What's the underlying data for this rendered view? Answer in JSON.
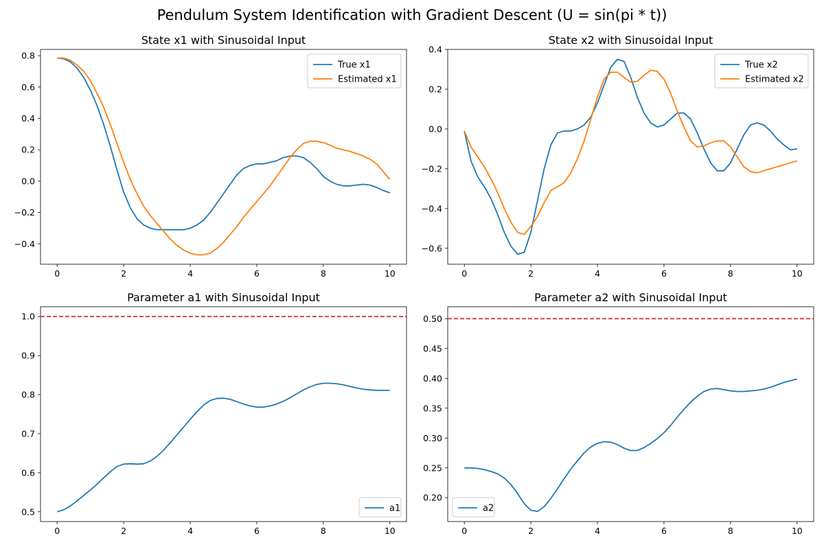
{
  "figure": {
    "title": "Pendulum System Identification with Gradient Descent (U = sin(pi * t))"
  },
  "colors": {
    "blue": "#1f77b4",
    "orange": "#ff7f0e",
    "red": "#d62728"
  },
  "chart_data": [
    {
      "id": "x1",
      "type": "line",
      "title": "State x1 with Sinusoidal Input",
      "xlim": [
        -0.5,
        10.5
      ],
      "ylim": [
        -0.53,
        0.84
      ],
      "xticks": [
        0,
        2,
        4,
        6,
        8,
        10
      ],
      "yticks": [
        -0.4,
        -0.2,
        0.0,
        0.2,
        0.4,
        0.6,
        0.8
      ],
      "yticklabels": [
        "−0.4",
        "−0.2",
        "0.0",
        "0.2",
        "0.4",
        "0.6",
        "0.8"
      ],
      "legend": "upper right",
      "series": [
        {
          "name": "True x1",
          "color": "#1f77b4",
          "x": [
            0,
            0.2,
            0.4,
            0.6,
            0.8,
            1.0,
            1.2,
            1.4,
            1.6,
            1.8,
            2.0,
            2.2,
            2.4,
            2.6,
            2.8,
            3.0,
            3.2,
            3.4,
            3.6,
            3.8,
            4.0,
            4.2,
            4.4,
            4.6,
            4.8,
            5.0,
            5.2,
            5.4,
            5.6,
            5.8,
            6.0,
            6.2,
            6.4,
            6.6,
            6.8,
            7.0,
            7.2,
            7.4,
            7.6,
            7.8,
            8.0,
            8.2,
            8.4,
            8.6,
            8.8,
            9.0,
            9.2,
            9.4,
            9.6,
            9.8,
            10.0
          ],
          "y": [
            0.785,
            0.78,
            0.76,
            0.72,
            0.66,
            0.58,
            0.48,
            0.36,
            0.22,
            0.07,
            -0.07,
            -0.17,
            -0.24,
            -0.28,
            -0.3,
            -0.31,
            -0.31,
            -0.31,
            -0.31,
            -0.31,
            -0.3,
            -0.28,
            -0.25,
            -0.2,
            -0.14,
            -0.08,
            -0.02,
            0.04,
            0.08,
            0.1,
            0.11,
            0.11,
            0.12,
            0.13,
            0.15,
            0.16,
            0.16,
            0.15,
            0.12,
            0.08,
            0.03,
            0.0,
            -0.02,
            -0.03,
            -0.03,
            -0.025,
            -0.02,
            -0.025,
            -0.04,
            -0.06,
            -0.075
          ]
        },
        {
          "name": "Estimated x1",
          "color": "#ff7f0e",
          "x": [
            0,
            0.2,
            0.4,
            0.6,
            0.8,
            1.0,
            1.2,
            1.4,
            1.6,
            1.8,
            2.0,
            2.2,
            2.4,
            2.6,
            2.8,
            3.0,
            3.2,
            3.4,
            3.6,
            3.8,
            4.0,
            4.2,
            4.4,
            4.6,
            4.8,
            5.0,
            5.2,
            5.4,
            5.6,
            5.8,
            6.0,
            6.2,
            6.4,
            6.6,
            6.8,
            7.0,
            7.2,
            7.4,
            7.6,
            7.8,
            8.0,
            8.2,
            8.4,
            8.6,
            8.8,
            9.0,
            9.2,
            9.4,
            9.6,
            9.8,
            10.0
          ],
          "y": [
            0.785,
            0.785,
            0.77,
            0.74,
            0.7,
            0.64,
            0.56,
            0.47,
            0.36,
            0.24,
            0.12,
            0.01,
            -0.08,
            -0.16,
            -0.22,
            -0.27,
            -0.32,
            -0.37,
            -0.41,
            -0.44,
            -0.46,
            -0.47,
            -0.47,
            -0.46,
            -0.43,
            -0.39,
            -0.34,
            -0.29,
            -0.23,
            -0.18,
            -0.13,
            -0.08,
            -0.03,
            0.03,
            0.09,
            0.15,
            0.2,
            0.24,
            0.255,
            0.255,
            0.245,
            0.23,
            0.21,
            0.2,
            0.19,
            0.175,
            0.16,
            0.14,
            0.11,
            0.06,
            0.01
          ]
        }
      ]
    },
    {
      "id": "x2",
      "type": "line",
      "title": "State x2 with Sinusoidal Input",
      "xlim": [
        -0.5,
        10.5
      ],
      "ylim": [
        -0.68,
        0.4
      ],
      "xticks": [
        0,
        2,
        4,
        6,
        8,
        10
      ],
      "yticks": [
        -0.6,
        -0.4,
        -0.2,
        0.0,
        0.2,
        0.4
      ],
      "yticklabels": [
        "−0.6",
        "−0.4",
        "−0.2",
        "0.0",
        "0.2",
        "0.4"
      ],
      "legend": "upper right",
      "series": [
        {
          "name": "True x2",
          "color": "#1f77b4",
          "x": [
            0,
            0.2,
            0.4,
            0.6,
            0.8,
            1.0,
            1.2,
            1.4,
            1.6,
            1.8,
            2.0,
            2.2,
            2.4,
            2.6,
            2.8,
            3.0,
            3.2,
            3.4,
            3.6,
            3.8,
            4.0,
            4.2,
            4.4,
            4.6,
            4.8,
            5.0,
            5.2,
            5.4,
            5.6,
            5.8,
            6.0,
            6.2,
            6.4,
            6.6,
            6.8,
            7.0,
            7.2,
            7.4,
            7.6,
            7.8,
            8.0,
            8.2,
            8.4,
            8.6,
            8.8,
            9.0,
            9.2,
            9.4,
            9.6,
            9.8,
            10.0
          ],
          "y": [
            -0.01,
            -0.16,
            -0.24,
            -0.29,
            -0.35,
            -0.43,
            -0.52,
            -0.59,
            -0.63,
            -0.62,
            -0.52,
            -0.36,
            -0.2,
            -0.08,
            -0.02,
            -0.01,
            -0.01,
            0.0,
            0.02,
            0.06,
            0.13,
            0.22,
            0.31,
            0.35,
            0.34,
            0.26,
            0.16,
            0.08,
            0.03,
            0.01,
            0.02,
            0.05,
            0.08,
            0.08,
            0.05,
            -0.02,
            -0.1,
            -0.17,
            -0.21,
            -0.21,
            -0.17,
            -0.1,
            -0.03,
            0.02,
            0.03,
            0.02,
            -0.01,
            -0.05,
            -0.08,
            -0.105,
            -0.1
          ]
        },
        {
          "name": "Estimated x2",
          "color": "#ff7f0e",
          "x": [
            0,
            0.2,
            0.4,
            0.6,
            0.8,
            1.0,
            1.2,
            1.4,
            1.6,
            1.8,
            2.0,
            2.2,
            2.4,
            2.6,
            2.8,
            3.0,
            3.2,
            3.4,
            3.6,
            3.8,
            4.0,
            4.2,
            4.4,
            4.6,
            4.8,
            5.0,
            5.2,
            5.4,
            5.6,
            5.8,
            6.0,
            6.2,
            6.4,
            6.6,
            6.8,
            7.0,
            7.2,
            7.4,
            7.6,
            7.8,
            8.0,
            8.2,
            8.4,
            8.6,
            8.8,
            9.0,
            9.2,
            9.4,
            9.6,
            9.8,
            10.0
          ],
          "y": [
            -0.01,
            -0.09,
            -0.14,
            -0.19,
            -0.25,
            -0.32,
            -0.4,
            -0.47,
            -0.52,
            -0.53,
            -0.49,
            -0.44,
            -0.37,
            -0.31,
            -0.29,
            -0.27,
            -0.22,
            -0.15,
            -0.06,
            0.05,
            0.16,
            0.25,
            0.285,
            0.285,
            0.26,
            0.235,
            0.24,
            0.27,
            0.295,
            0.29,
            0.25,
            0.18,
            0.09,
            0.01,
            -0.06,
            -0.09,
            -0.085,
            -0.07,
            -0.06,
            -0.06,
            -0.09,
            -0.14,
            -0.19,
            -0.215,
            -0.22,
            -0.21,
            -0.2,
            -0.19,
            -0.18,
            -0.17,
            -0.16
          ]
        }
      ]
    },
    {
      "id": "a1",
      "type": "line",
      "title": "Parameter a1 with Sinusoidal Input",
      "xlim": [
        -0.5,
        10.5
      ],
      "ylim": [
        0.475,
        1.025
      ],
      "xticks": [
        0,
        2,
        4,
        6,
        8,
        10
      ],
      "yticks": [
        0.5,
        0.6,
        0.7,
        0.8,
        0.9,
        1.0
      ],
      "yticklabels": [
        "0.5",
        "0.6",
        "0.7",
        "0.8",
        "0.9",
        "1.0"
      ],
      "legend": "lower right",
      "reference_line": {
        "y": 1.0,
        "style": "dashed",
        "color": "#d62728"
      },
      "series": [
        {
          "name": "a1",
          "color": "#1f77b4",
          "x": [
            0,
            0.2,
            0.4,
            0.6,
            0.8,
            1.0,
            1.2,
            1.4,
            1.6,
            1.8,
            2.0,
            2.2,
            2.4,
            2.6,
            2.8,
            3.0,
            3.2,
            3.4,
            3.6,
            3.8,
            4.0,
            4.2,
            4.4,
            4.6,
            4.8,
            5.0,
            5.2,
            5.4,
            5.6,
            5.8,
            6.0,
            6.2,
            6.4,
            6.6,
            6.8,
            7.0,
            7.2,
            7.4,
            7.6,
            7.8,
            8.0,
            8.2,
            8.4,
            8.6,
            8.8,
            9.0,
            9.2,
            9.4,
            9.6,
            9.8,
            10.0
          ],
          "y": [
            0.5,
            0.505,
            0.515,
            0.528,
            0.542,
            0.556,
            0.571,
            0.587,
            0.603,
            0.616,
            0.622,
            0.623,
            0.622,
            0.623,
            0.63,
            0.642,
            0.658,
            0.677,
            0.697,
            0.717,
            0.737,
            0.756,
            0.773,
            0.785,
            0.79,
            0.791,
            0.788,
            0.782,
            0.776,
            0.771,
            0.768,
            0.768,
            0.771,
            0.776,
            0.783,
            0.792,
            0.802,
            0.812,
            0.82,
            0.826,
            0.829,
            0.829,
            0.828,
            0.825,
            0.821,
            0.817,
            0.814,
            0.812,
            0.811,
            0.811,
            0.811
          ]
        }
      ]
    },
    {
      "id": "a2",
      "type": "line",
      "title": "Parameter a2 with Sinusoidal Input",
      "xlim": [
        -0.5,
        10.5
      ],
      "ylim": [
        0.16,
        0.52
      ],
      "xticks": [
        0,
        2,
        4,
        6,
        8,
        10
      ],
      "yticks": [
        0.2,
        0.25,
        0.3,
        0.35,
        0.4,
        0.45,
        0.5
      ],
      "yticklabels": [
        "0.20",
        "0.25",
        "0.30",
        "0.35",
        "0.40",
        "0.45",
        "0.50"
      ],
      "legend": "lower left",
      "reference_line": {
        "y": 0.5,
        "style": "dashed",
        "color": "#d62728"
      },
      "series": [
        {
          "name": "a2",
          "color": "#1f77b4",
          "x": [
            0,
            0.2,
            0.4,
            0.6,
            0.8,
            1.0,
            1.2,
            1.4,
            1.6,
            1.8,
            2.0,
            2.2,
            2.4,
            2.6,
            2.8,
            3.0,
            3.2,
            3.4,
            3.6,
            3.8,
            4.0,
            4.2,
            4.4,
            4.6,
            4.8,
            5.0,
            5.2,
            5.4,
            5.6,
            5.8,
            6.0,
            6.2,
            6.4,
            6.6,
            6.8,
            7.0,
            7.2,
            7.4,
            7.6,
            7.8,
            8.0,
            8.2,
            8.4,
            8.6,
            8.8,
            9.0,
            9.2,
            9.4,
            9.6,
            9.8,
            10.0
          ],
          "y": [
            0.25,
            0.25,
            0.249,
            0.247,
            0.244,
            0.24,
            0.233,
            0.222,
            0.207,
            0.19,
            0.179,
            0.177,
            0.185,
            0.199,
            0.215,
            0.232,
            0.248,
            0.262,
            0.275,
            0.285,
            0.291,
            0.294,
            0.293,
            0.289,
            0.283,
            0.279,
            0.279,
            0.284,
            0.291,
            0.299,
            0.309,
            0.321,
            0.335,
            0.348,
            0.36,
            0.37,
            0.378,
            0.382,
            0.383,
            0.381,
            0.379,
            0.378,
            0.378,
            0.379,
            0.38,
            0.382,
            0.385,
            0.389,
            0.393,
            0.396,
            0.399
          ]
        }
      ]
    }
  ]
}
